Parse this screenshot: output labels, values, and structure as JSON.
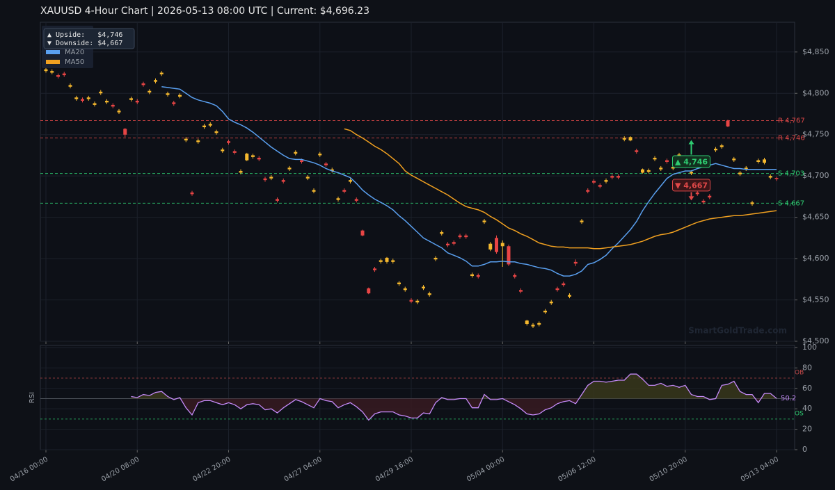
{
  "chart_data": {
    "type": "candlestick",
    "title": "XAUUSD  4-Hour Chart  |  2026-05-13 08:00 UTC  |  Current: $4,696.23",
    "categories": [
      "04/16 00:00",
      null,
      null,
      null,
      null,
      null,
      null,
      null,
      null,
      null,
      null,
      null,
      null,
      null,
      null,
      "04/20 08:00",
      null,
      null,
      null,
      null,
      null,
      null,
      null,
      null,
      null,
      null,
      null,
      null,
      null,
      null,
      "04/22 20:00",
      null,
      null,
      null,
      null,
      null,
      null,
      null,
      null,
      null,
      null,
      null,
      null,
      null,
      null,
      "04/27 04:00",
      null,
      null,
      null,
      null,
      null,
      null,
      null,
      null,
      null,
      null,
      null,
      null,
      null,
      null,
      "04/29 16:00",
      null,
      null,
      null,
      null,
      null,
      null,
      null,
      null,
      null,
      null,
      null,
      null,
      null,
      null,
      "05/04 00:00",
      null,
      null,
      null,
      null,
      null,
      null,
      null,
      null,
      null,
      null,
      null,
      null,
      null,
      null,
      "05/06 12:00",
      null,
      null,
      null,
      null,
      null,
      null,
      null,
      null,
      null,
      null,
      null,
      null,
      null,
      null,
      "05/10 20:00",
      null,
      null,
      null,
      null,
      null,
      null,
      null,
      null,
      null,
      null,
      null,
      null,
      null,
      null,
      "05/13 04:00"
    ],
    "open": [
      4827,
      4825,
      4822,
      4824,
      4808,
      4793,
      4793,
      4793,
      4786,
      4800,
      4789,
      4786,
      4777,
      4757,
      4792,
      4791,
      4812,
      4801,
      4814,
      4823,
      4798,
      4789,
      4796,
      4743,
      4680,
      4741,
      4759,
      4761,
      4752,
      4730,
      4742,
      4730,
      4704,
      4719,
      4723,
      4722,
      4697,
      4697,
      4672,
      4695,
      4708,
      4727,
      4719,
      4697,
      4681,
      4725,
      4715,
      4706,
      4671,
      4683,
      4693,
      4672,
      4634,
      4564,
      4588,
      4596,
      4596,
      4596,
      4569,
      4562,
      4550,
      4547,
      4564,
      4556,
      4599,
      4630,
      4618,
      4620,
      4628,
      4628,
      4579,
      4580,
      4644,
      4611,
      4625,
      4615,
      4615,
      4580,
      4562,
      4521,
      4518,
      4520,
      4535,
      4546,
      4564,
      4570,
      4554,
      4596,
      4644,
      4683,
      4694,
      4689,
      4693,
      4700,
      4700,
      4744,
      4743,
      4731,
      4704,
      4705,
      4720,
      4708,
      4719,
      4709,
      4724,
      4719,
      4703,
      4680,
      4670,
      4676,
      4731,
      4735,
      4767,
      4719,
      4702,
      4708,
      4666,
      4717,
      4716,
      4698,
      4697.5
    ],
    "high": [
      4831,
      4829,
      4824,
      4826,
      4812,
      4797,
      4795,
      4797,
      4790,
      4804,
      4793,
      4788,
      4781,
      4758,
      4796,
      4793,
      4814,
      4805,
      4818,
      4827,
      4802,
      4791,
      4800,
      4747,
      4682,
      4745,
      4763,
      4765,
      4756,
      4734,
      4744,
      4732,
      4708,
      4728,
      4727,
      4724,
      4699,
      4701,
      4674,
      4697,
      4712,
      4731,
      4721,
      4701,
      4685,
      4729,
      4717,
      4710,
      4675,
      4685,
      4697,
      4674,
      4635,
      4565,
      4590,
      4600,
      4602,
      4600,
      4573,
      4566,
      4552,
      4551,
      4568,
      4560,
      4603,
      4634,
      4620,
      4622,
      4630,
      4630,
      4583,
      4582,
      4648,
      4620,
      4628,
      4622,
      4617,
      4582,
      4564,
      4526,
      4522,
      4524,
      4539,
      4550,
      4566,
      4572,
      4558,
      4599,
      4648,
      4685,
      4696,
      4691,
      4697,
      4702,
      4702,
      4748,
      4748,
      4733,
      4709,
      4709,
      4724,
      4712,
      4721,
      4713,
      4728,
      4723,
      4707,
      4682,
      4672,
      4678,
      4735,
      4739,
      4768,
      4723,
      4706,
      4712,
      4670,
      4721,
      4722,
      4702,
      4699
    ],
    "low": [
      4825,
      4823,
      4818,
      4820,
      4806,
      4791,
      4789,
      4791,
      4784,
      4798,
      4787,
      4782,
      4775,
      4747,
      4790,
      4787,
      4808,
      4799,
      4812,
      4821,
      4796,
      4785,
      4794,
      4741,
      4676,
      4739,
      4757,
      4759,
      4750,
      4728,
      4738,
      4726,
      4702,
      4718,
      4721,
      4718,
      4693,
      4695,
      4668,
      4691,
      4706,
      4725,
      4715,
      4695,
      4679,
      4723,
      4711,
      4704,
      4669,
      4679,
      4691,
      4668,
      4627,
      4557,
      4584,
      4594,
      4594,
      4594,
      4567,
      4560,
      4546,
      4545,
      4562,
      4554,
      4597,
      4628,
      4614,
      4616,
      4624,
      4624,
      4577,
      4576,
      4642,
      4609,
      4606,
      4590,
      4591,
      4576,
      4558,
      4519,
      4516,
      4518,
      4533,
      4544,
      4560,
      4566,
      4552,
      4591,
      4642,
      4679,
      4690,
      4685,
      4691,
      4696,
      4696,
      4742,
      4742,
      4727,
      4703,
      4703,
      4718,
      4706,
      4715,
      4707,
      4722,
      4717,
      4701,
      4676,
      4666,
      4672,
      4729,
      4733,
      4759,
      4717,
      4700,
      4706,
      4664,
      4715,
      4714,
      4696,
      4694
    ],
    "close": [
      4829,
      4827,
      4820,
      4822,
      4810,
      4795,
      4791,
      4795,
      4788,
      4802,
      4791,
      4784,
      4779,
      4750,
      4794,
      4789,
      4810,
      4803,
      4816,
      4825,
      4800,
      4787,
      4798,
      4745,
      4678,
      4743,
      4761,
      4763,
      4754,
      4732,
      4740,
      4728,
      4706,
      4727,
      4725,
      4720,
      4695,
      4699,
      4670,
      4693,
      4710,
      4729,
      4717,
      4699,
      4683,
      4727,
      4713,
      4708,
      4673,
      4681,
      4695,
      4670,
      4628,
      4558,
      4586,
      4598,
      4601,
      4598,
      4571,
      4564,
      4548,
      4549,
      4566,
      4558,
      4601,
      4632,
      4616,
      4618,
      4626,
      4626,
      4581,
      4578,
      4646,
      4618,
      4608,
      4619,
      4593,
      4578,
      4560,
      4525,
      4520,
      4522,
      4537,
      4548,
      4562,
      4568,
      4556,
      4594,
      4646,
      4681,
      4692,
      4687,
      4695,
      4698,
      4698,
      4746,
      4747,
      4729,
      4708,
      4707,
      4722,
      4710,
      4717,
      4711,
      4726,
      4721,
      4705,
      4678,
      4668,
      4674,
      4733,
      4737,
      4760,
      4721,
      4704,
      4710,
      4668,
      4719,
      4720,
      4700,
      4696.23
    ],
    "up_color": "#f5b82e",
    "down_color": "#e84545",
    "series": [
      {
        "name": "MA20",
        "color": "#5aa0f0",
        "values": [
          null,
          null,
          null,
          null,
          null,
          null,
          null,
          null,
          null,
          null,
          null,
          null,
          null,
          null,
          null,
          null,
          null,
          null,
          null,
          4808,
          4807,
          4806,
          4805,
          4800,
          4795,
          4792,
          4790,
          4788,
          4785,
          4778,
          4769,
          4765,
          4762,
          4758,
          4753,
          4747,
          4741,
          4735,
          4730,
          4725,
          4721,
          4720,
          4720,
          4718,
          4716,
          4713,
          4709,
          4706,
          4704,
          4701,
          4698,
          4691,
          4683,
          4677,
          4672,
          4668,
          4664,
          4659,
          4652,
          4646,
          4639,
          4632,
          4625,
          4621,
          4617,
          4613,
          4607,
          4604,
          4601,
          4597,
          4591,
          4591,
          4593,
          4596,
          4596,
          4597,
          4596,
          4596,
          4594,
          4593,
          4591,
          4589,
          4588,
          4586,
          4582,
          4579,
          4579,
          4581,
          4585,
          4593,
          4595,
          4599,
          4604,
          4612,
          4619,
          4627,
          4635,
          4645,
          4658,
          4669,
          4679,
          4688,
          4697,
          4702,
          4704,
          4706,
          4706,
          4709,
          4711,
          4713,
          4715,
          4713,
          4711,
          4709,
          4709,
          4708,
          4708,
          4708,
          4708,
          4708,
          4708
        ]
      },
      {
        "name": "MA50",
        "color": "#f0a020",
        "values": [
          null,
          null,
          null,
          null,
          null,
          null,
          null,
          null,
          null,
          null,
          null,
          null,
          null,
          null,
          null,
          null,
          null,
          null,
          null,
          null,
          null,
          null,
          null,
          null,
          null,
          null,
          null,
          null,
          null,
          null,
          null,
          null,
          null,
          null,
          null,
          null,
          null,
          null,
          null,
          null,
          null,
          null,
          null,
          null,
          null,
          null,
          null,
          null,
          null,
          4757,
          4755,
          4750,
          4746,
          4741,
          4736,
          4732,
          4727,
          4721,
          4715,
          4706,
          4701,
          4697,
          4693,
          4689,
          4685,
          4681,
          4677,
          4672,
          4667,
          4663,
          4661,
          4659,
          4656,
          4651,
          4647,
          4642,
          4637,
          4634,
          4630,
          4627,
          4623,
          4619,
          4617,
          4615,
          4614,
          4614,
          4613,
          4613,
          4613,
          4613,
          4612,
          4612,
          4613,
          4614,
          4615,
          4616,
          4617,
          4619,
          4621,
          4624,
          4627,
          4629,
          4630,
          4632,
          4635,
          4638,
          4641,
          4644,
          4646,
          4648,
          4649,
          4650,
          4651,
          4652,
          4652,
          4653,
          4654,
          4655,
          4656,
          4657,
          4658
        ]
      }
    ],
    "ylim": [
      4500,
      4886
    ],
    "yticks": [
      {
        "value": 4500,
        "label": "$4,500"
      },
      {
        "value": 4550,
        "label": "$4,550"
      },
      {
        "value": 4600,
        "label": "$4,600"
      },
      {
        "value": 4650,
        "label": "$4,650"
      },
      {
        "value": 4700,
        "label": "$4,700"
      },
      {
        "value": 4750,
        "label": "$4,750"
      },
      {
        "value": 4800,
        "label": "$4,800"
      },
      {
        "value": 4850,
        "label": "$4,850"
      }
    ],
    "grid": true,
    "levels": [
      {
        "value": 4767,
        "label": "R 4,767",
        "color": "#e04848"
      },
      {
        "value": 4746,
        "label": "R 4,746",
        "color": "#e04848"
      },
      {
        "value": 4703,
        "label": "S 4,703",
        "color": "#2ecc71"
      },
      {
        "value": 4667,
        "label": "S 4,667",
        "color": "#2ecc71"
      }
    ],
    "annotations": [
      {
        "text": "▲ 4,746",
        "value": 4746,
        "x": 106,
        "color": "#2ecc71"
      },
      {
        "text": "▼ 4,667",
        "value": 4667,
        "x": 106,
        "color": "#e04848"
      }
    ],
    "info_box": [
      "▲ Upside:   $4,746",
      "▼ Downside: $4,667"
    ],
    "legend": "upper left",
    "watermark": "SmartGoldTrade.com",
    "rsi": {
      "ylabel": "RSI",
      "color": "#c58af9",
      "values": [
        null,
        null,
        null,
        null,
        null,
        null,
        null,
        null,
        null,
        null,
        null,
        null,
        null,
        null,
        52,
        51,
        54,
        53,
        56,
        57,
        52,
        49,
        51,
        41,
        34,
        46,
        48,
        48,
        46,
        44,
        46,
        44,
        40,
        44,
        45,
        44,
        39,
        40,
        36,
        41,
        45,
        49,
        47,
        44,
        41,
        50,
        48,
        47,
        41,
        44,
        46,
        42,
        37,
        29,
        35,
        37,
        37,
        37,
        34,
        33,
        31,
        31,
        36,
        35,
        46,
        51,
        49,
        49,
        50,
        50,
        41,
        41,
        54,
        49,
        49,
        50,
        47,
        44,
        40,
        35,
        34,
        35,
        39,
        41,
        45,
        47,
        48,
        45,
        54,
        63,
        67,
        67,
        66,
        67,
        68,
        68,
        74,
        74,
        69,
        63,
        63,
        65,
        62,
        63,
        61,
        63,
        54,
        52,
        52,
        49,
        50,
        63,
        64,
        67,
        57,
        54,
        54,
        46,
        55,
        55,
        50.2
      ],
      "ylim": [
        0,
        102
      ],
      "yticks": [
        0,
        20,
        40,
        60,
        80,
        100
      ],
      "baseline": 50,
      "levels": [
        {
          "value": 70,
          "label": "OB",
          "color": "#c04848"
        },
        {
          "value": 30,
          "label": "OS",
          "color": "#2ecc71"
        }
      ]
    }
  }
}
